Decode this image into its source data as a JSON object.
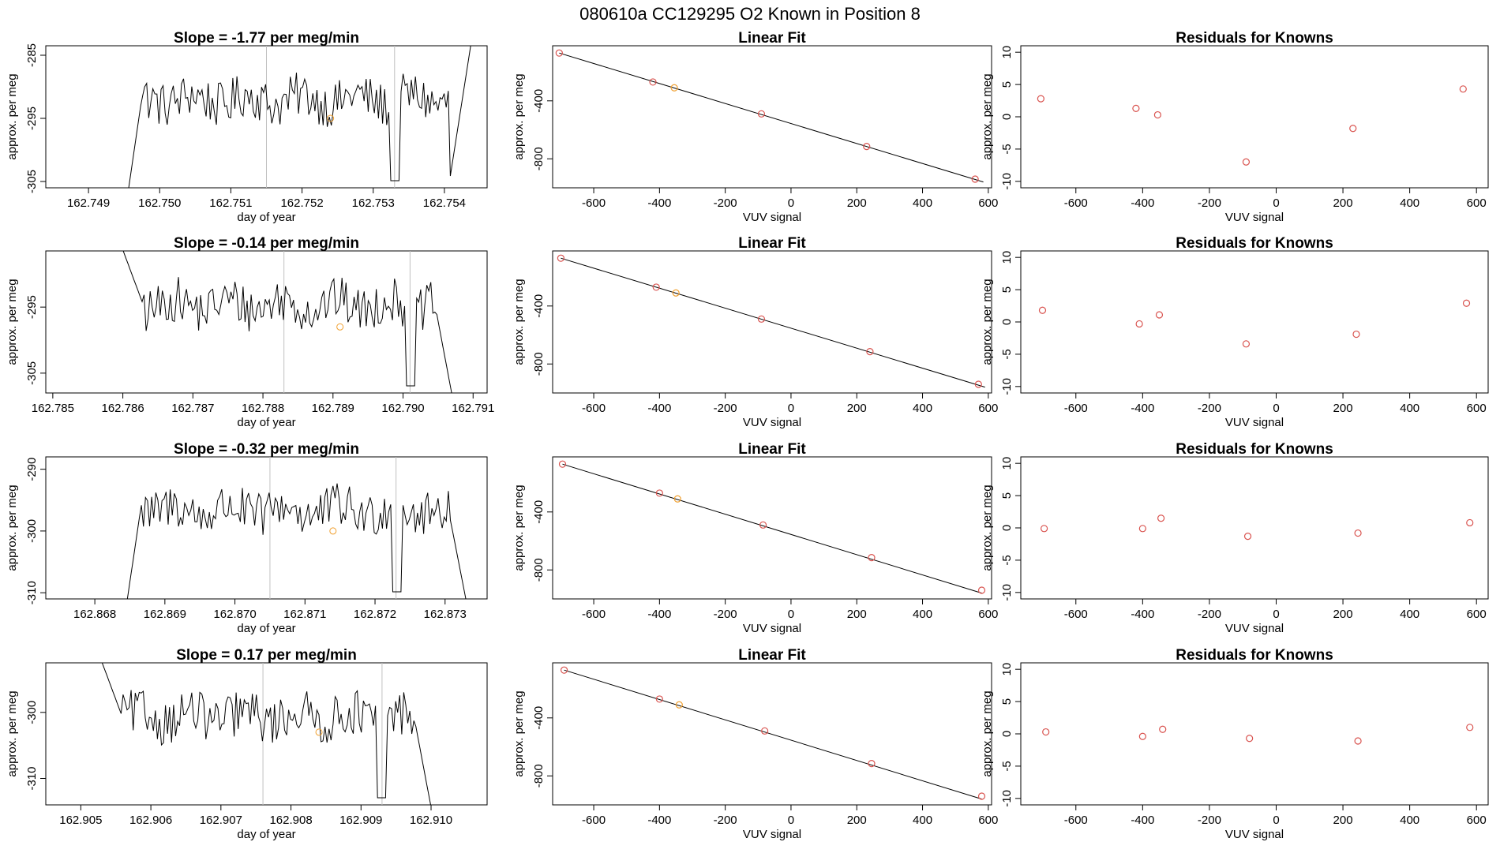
{
  "page_title": "080610a      CC129295   O2 Known in Position  8",
  "colors": {
    "line": "#000000",
    "residual": "#d9534f",
    "highlight": "#f0a030",
    "vline": "#c0c0c0"
  },
  "rows": [
    {
      "ts": {
        "title": "Slope =  -1.77  per meg/min",
        "xlabel": "day of year",
        "ylabel": "approx. per meg",
        "xlim": [
          162.7484,
          162.7546
        ],
        "ylim": [
          -306,
          -283.5
        ],
        "xticks": [
          162.749,
          162.75,
          162.751,
          162.752,
          162.753,
          162.754
        ],
        "xtick_labels": [
          "162.749",
          "162.750",
          "162.751",
          "162.752",
          "162.753",
          "162.754"
        ],
        "yticks": [
          -285,
          -295,
          -305
        ],
        "ytick_labels": [
          "-285",
          "-295",
          "-305"
        ],
        "t_start": 162.7495,
        "t_end": 162.7544,
        "vlines": [
          162.7515,
          162.7533
        ],
        "marker": [
          162.7524,
          -295
        ]
      },
      "fit": {
        "title": "Linear Fit",
        "xlabel": "VUV signal",
        "ylabel": "approx. per meg",
        "xlim": [
          -725,
          610
        ],
        "ylim": [
          -1000,
          -20
        ],
        "xticks": [
          -600,
          -400,
          -200,
          0,
          200,
          400,
          600
        ],
        "xtick_labels": [
          "-600",
          "-400",
          "-200",
          "0",
          "200",
          "400",
          "600"
        ],
        "yticks": [
          -400,
          -800
        ],
        "ytick_labels": [
          "-400",
          "-800"
        ],
        "line": [
          [
            -705,
            -70
          ],
          [
            585,
            -960
          ]
        ],
        "points": [
          [
            -705,
            -70
          ],
          [
            -420,
            -270
          ],
          [
            -355,
            -310
          ],
          [
            -90,
            -490
          ],
          [
            230,
            -715
          ],
          [
            560,
            -940
          ]
        ],
        "highlight_index": 2
      },
      "res": {
        "title": "Residuals for Knowns",
        "xlabel": "VUV signal",
        "ylabel": "approx. per meg",
        "xlim": [
          -765,
          635
        ],
        "ylim": [
          -11,
          11
        ],
        "xticks": [
          -600,
          -400,
          -200,
          0,
          200,
          400,
          600
        ],
        "xtick_labels": [
          "-600",
          "-400",
          "-200",
          "0",
          "200",
          "400",
          "600"
        ],
        "yticks": [
          10,
          5,
          0,
          -5,
          -10
        ],
        "ytick_labels": [
          "10",
          "5",
          "0",
          "-5",
          "-10"
        ],
        "points": [
          [
            -705,
            2.8
          ],
          [
            -420,
            1.3
          ],
          [
            -355,
            0.3
          ],
          [
            -90,
            -7
          ],
          [
            230,
            -1.8
          ],
          [
            560,
            4.3
          ]
        ]
      }
    },
    {
      "ts": {
        "title": "Slope =  -0.14  per meg/min",
        "xlabel": "day of year",
        "ylabel": "approx. per meg",
        "xlim": [
          162.7849,
          162.7912
        ],
        "ylim": [
          -308,
          -286.5
        ],
        "xticks": [
          162.785,
          162.786,
          162.787,
          162.788,
          162.789,
          162.79,
          162.791
        ],
        "xtick_labels": [
          "162.785",
          "162.786",
          "162.787",
          "162.788",
          "162.789",
          "162.790",
          "162.791"
        ],
        "yticks": [
          -295,
          -305
        ],
        "ytick_labels": [
          "-295",
          "-305"
        ],
        "t_start": 162.7859,
        "t_end": 162.7908,
        "vlines": [
          162.7883,
          162.7901
        ],
        "marker": [
          162.7891,
          -298
        ]
      },
      "fit": {
        "title": "Linear Fit",
        "xlabel": "VUV signal",
        "ylabel": "approx. per meg",
        "xlim": [
          -725,
          610
        ],
        "ylim": [
          -1000,
          -20
        ],
        "xticks": [
          -600,
          -400,
          -200,
          0,
          200,
          400,
          600
        ],
        "xtick_labels": [
          "-600",
          "-400",
          "-200",
          "0",
          "200",
          "400",
          "600"
        ],
        "yticks": [
          -400,
          -800
        ],
        "ytick_labels": [
          "-400",
          "-800"
        ],
        "line": [
          [
            -700,
            -70
          ],
          [
            590,
            -960
          ]
        ],
        "points": [
          [
            -700,
            -70
          ],
          [
            -410,
            -270
          ],
          [
            -350,
            -310
          ],
          [
            -90,
            -490
          ],
          [
            240,
            -715
          ],
          [
            570,
            -940
          ]
        ],
        "highlight_index": 2
      },
      "res": {
        "title": "Residuals for Knowns",
        "xlabel": "VUV signal",
        "ylabel": "approx. per meg",
        "xlim": [
          -765,
          635
        ],
        "ylim": [
          -11,
          11
        ],
        "xticks": [
          -600,
          -400,
          -200,
          0,
          200,
          400,
          600
        ],
        "xtick_labels": [
          "-600",
          "-400",
          "-200",
          "0",
          "200",
          "400",
          "600"
        ],
        "yticks": [
          10,
          5,
          0,
          -5,
          -10
        ],
        "ytick_labels": [
          "10",
          "5",
          "0",
          "-5",
          "-10"
        ],
        "points": [
          [
            -700,
            1.8
          ],
          [
            -410,
            -0.3
          ],
          [
            -350,
            1.1
          ],
          [
            -90,
            -3.4
          ],
          [
            240,
            -1.9
          ],
          [
            570,
            2.9
          ]
        ]
      }
    },
    {
      "ts": {
        "title": "Slope =  -0.32  per meg/min",
        "xlabel": "day of year",
        "ylabel": "approx. per meg",
        "xlim": [
          162.8673,
          162.8736
        ],
        "ylim": [
          -311,
          -288
        ],
        "xticks": [
          162.868,
          162.869,
          162.87,
          162.871,
          162.872,
          162.873
        ],
        "xtick_labels": [
          "162.868",
          "162.869",
          "162.870",
          "162.871",
          "162.872",
          "162.873"
        ],
        "yticks": [
          -290,
          -300,
          -310
        ],
        "ytick_labels": [
          "-290",
          "-300",
          "-310"
        ],
        "t_start": 162.8684,
        "t_end": 162.8734,
        "vlines": [
          162.8705,
          162.8723
        ],
        "marker": [
          162.8714,
          -300
        ]
      },
      "fit": {
        "title": "Linear Fit",
        "xlabel": "VUV signal",
        "ylabel": "approx. per meg",
        "xlim": [
          -725,
          610
        ],
        "ylim": [
          -1000,
          -20
        ],
        "xticks": [
          -600,
          -400,
          -200,
          0,
          200,
          400,
          600
        ],
        "xtick_labels": [
          "-600",
          "-400",
          "-200",
          "0",
          "200",
          "400",
          "600"
        ],
        "yticks": [
          -400,
          -800
        ],
        "ytick_labels": [
          "-400",
          "-800"
        ],
        "line": [
          [
            -695,
            -70
          ],
          [
            580,
            -960
          ]
        ],
        "points": [
          [
            -695,
            -70
          ],
          [
            -400,
            -270
          ],
          [
            -345,
            -310
          ],
          [
            -85,
            -490
          ],
          [
            245,
            -715
          ],
          [
            580,
            -940
          ]
        ],
        "highlight_index": 2
      },
      "res": {
        "title": "Residuals for Knowns",
        "xlabel": "VUV signal",
        "ylabel": "approx. per meg",
        "xlim": [
          -765,
          635
        ],
        "ylim": [
          -11,
          11
        ],
        "xticks": [
          -600,
          -400,
          -200,
          0,
          200,
          400,
          600
        ],
        "xtick_labels": [
          "-600",
          "-400",
          "-200",
          "0",
          "200",
          "400",
          "600"
        ],
        "yticks": [
          10,
          5,
          0,
          -5,
          -10
        ],
        "ytick_labels": [
          "10",
          "5",
          "0",
          "-5",
          "-10"
        ],
        "points": [
          [
            -695,
            -0.1
          ],
          [
            -400,
            -0.1
          ],
          [
            -345,
            1.5
          ],
          [
            -85,
            -1.3
          ],
          [
            245,
            -0.8
          ],
          [
            580,
            0.8
          ]
        ]
      }
    },
    {
      "ts": {
        "title": "Slope =  0.17  per meg/min",
        "xlabel": "day of year",
        "ylabel": "approx. per meg",
        "xlim": [
          162.9045,
          162.9108
        ],
        "ylim": [
          -314,
          -292.5
        ],
        "xticks": [
          162.905,
          162.906,
          162.907,
          162.908,
          162.909,
          162.91
        ],
        "xtick_labels": [
          "162.905",
          "162.906",
          "162.907",
          "162.908",
          "162.909",
          "162.910"
        ],
        "yticks": [
          -300,
          -310
        ],
        "ytick_labels": [
          "-300",
          "-310"
        ],
        "t_start": 162.9052,
        "t_end": 162.9101,
        "vlines": [
          162.9076,
          162.9093
        ],
        "marker": [
          162.9084,
          -303
        ]
      },
      "fit": {
        "title": "Linear Fit",
        "xlabel": "VUV signal",
        "ylabel": "approx. per meg",
        "xlim": [
          -725,
          610
        ],
        "ylim": [
          -1000,
          -20
        ],
        "xticks": [
          -600,
          -400,
          -200,
          0,
          200,
          400,
          600
        ],
        "xtick_labels": [
          "-600",
          "-400",
          "-200",
          "0",
          "200",
          "400",
          "600"
        ],
        "yticks": [
          -400,
          -800
        ],
        "ytick_labels": [
          "-400",
          "-800"
        ],
        "line": [
          [
            -690,
            -70
          ],
          [
            580,
            -960
          ]
        ],
        "points": [
          [
            -690,
            -70
          ],
          [
            -400,
            -270
          ],
          [
            -340,
            -310
          ],
          [
            -80,
            -490
          ],
          [
            245,
            -715
          ],
          [
            580,
            -940
          ]
        ],
        "highlight_index": 2
      },
      "res": {
        "title": "Residuals for Knowns",
        "xlabel": "VUV signal",
        "ylabel": "approx. per meg",
        "xlim": [
          -765,
          635
        ],
        "ylim": [
          -11,
          11
        ],
        "xticks": [
          -600,
          -400,
          -200,
          0,
          200,
          400,
          600
        ],
        "xtick_labels": [
          "-600",
          "-400",
          "-200",
          "0",
          "200",
          "400",
          "600"
        ],
        "yticks": [
          10,
          5,
          0,
          -5,
          -10
        ],
        "ytick_labels": [
          "10",
          "5",
          "0",
          "-5",
          "-10"
        ],
        "points": [
          [
            -690,
            0.3
          ],
          [
            -400,
            -0.4
          ],
          [
            -340,
            0.7
          ],
          [
            -80,
            -0.7
          ],
          [
            245,
            -1.1
          ],
          [
            580,
            1.0
          ]
        ]
      }
    }
  ]
}
